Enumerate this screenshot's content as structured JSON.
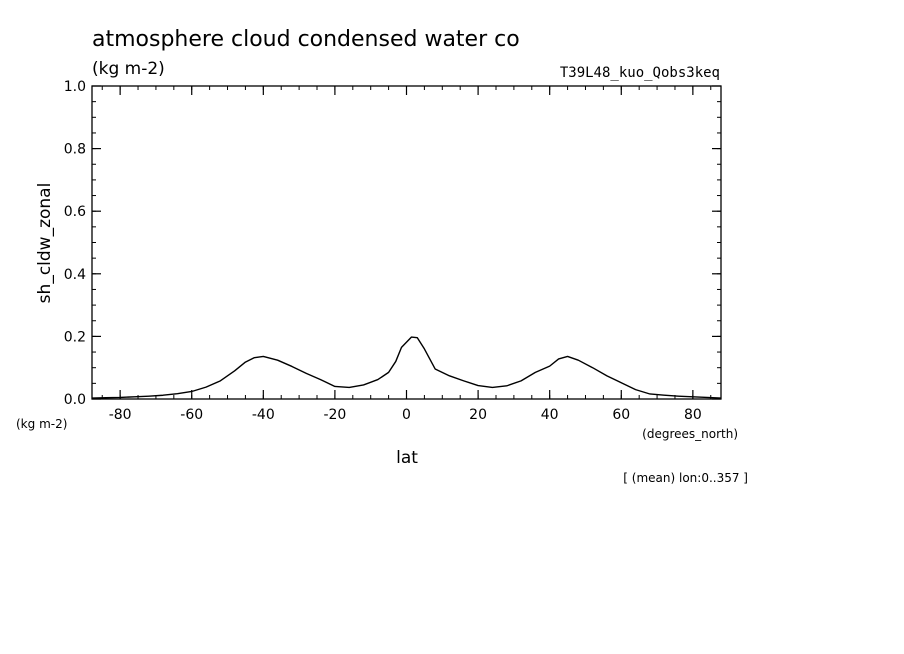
{
  "chart_data": {
    "type": "line",
    "title": "atmosphere cloud condensed water co",
    "title_units": "(kg m-2)",
    "run_label": "T39L48_kuo_Qobs3keq",
    "xlabel": "lat",
    "xunits": "(degrees_north)",
    "ylabel": "sh_cldw_zonal",
    "yunits": "(kg m-2)",
    "footnote": "[ (mean) lon:0..357 ]",
    "xlim": [
      -87.86,
      87.86
    ],
    "ylim": [
      0.0,
      1.0
    ],
    "xticks": [
      -80,
      -60,
      -40,
      -20,
      0,
      20,
      40,
      60,
      80
    ],
    "xtick_labels": [
      "-80",
      "-60",
      "-40",
      "-20",
      "0",
      "20",
      "40",
      "60",
      "80"
    ],
    "yticks": [
      0.0,
      0.2,
      0.4,
      0.6,
      0.8,
      1.0
    ],
    "ytick_labels": [
      "0.0",
      "0.2",
      "0.4",
      "0.6",
      "0.8",
      "1.0"
    ],
    "x_minor_step": 5,
    "y_minor_step": 0.05,
    "grid": false,
    "series": [
      {
        "name": "sh_cldw_zonal",
        "x": [
          -87.86,
          -84,
          -80,
          -76,
          -72,
          -68,
          -64,
          -60,
          -56,
          -52,
          -48,
          -45,
          -42.5,
          -40,
          -36,
          -32,
          -28,
          -24,
          -20,
          -16,
          -12,
          -8,
          -5,
          -3,
          -1.4,
          1.4,
          3,
          5,
          8,
          12,
          16,
          20,
          24,
          28,
          32,
          36,
          40,
          42.5,
          45,
          48,
          52,
          56,
          60,
          64,
          68,
          72,
          76,
          80,
          84,
          87.86
        ],
        "y": [
          0.003,
          0.004,
          0.005,
          0.007,
          0.009,
          0.012,
          0.017,
          0.024,
          0.038,
          0.058,
          0.09,
          0.118,
          0.132,
          0.136,
          0.124,
          0.104,
          0.082,
          0.062,
          0.04,
          0.037,
          0.045,
          0.062,
          0.085,
          0.12,
          0.165,
          0.198,
          0.196,
          0.16,
          0.096,
          0.074,
          0.058,
          0.043,
          0.037,
          0.042,
          0.058,
          0.085,
          0.105,
          0.128,
          0.136,
          0.124,
          0.1,
          0.074,
          0.052,
          0.03,
          0.016,
          0.012,
          0.009,
          0.007,
          0.005,
          0.003
        ]
      }
    ]
  }
}
